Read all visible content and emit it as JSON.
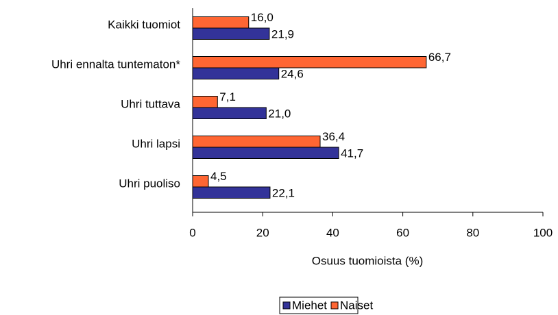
{
  "chart_data": {
    "type": "bar",
    "orientation": "horizontal",
    "categories": [
      "Kaikki tuomiot",
      "Uhri ennalta tuntematon*",
      "Uhri tuttava",
      "Uhri lapsi",
      "Uhri puoliso"
    ],
    "series": [
      {
        "name": "Miehet",
        "color": "#333399",
        "values": [
          21.9,
          24.6,
          21.0,
          41.7,
          22.1
        ],
        "value_labels": [
          "21,9",
          "24,6",
          "21,0",
          "41,7",
          "22,1"
        ]
      },
      {
        "name": "Naiset",
        "color": "#ff6633",
        "values": [
          16.0,
          66.7,
          7.1,
          36.4,
          4.5
        ],
        "value_labels": [
          "16,0",
          "66,7",
          "7,1",
          "36,4",
          "4,5"
        ]
      }
    ],
    "xlabel": "Osuus tuomioista (%)",
    "xlim": [
      0,
      100
    ],
    "xticks": [
      0,
      20,
      40,
      60,
      80,
      100
    ],
    "grid": false,
    "legend": "bottom"
  }
}
